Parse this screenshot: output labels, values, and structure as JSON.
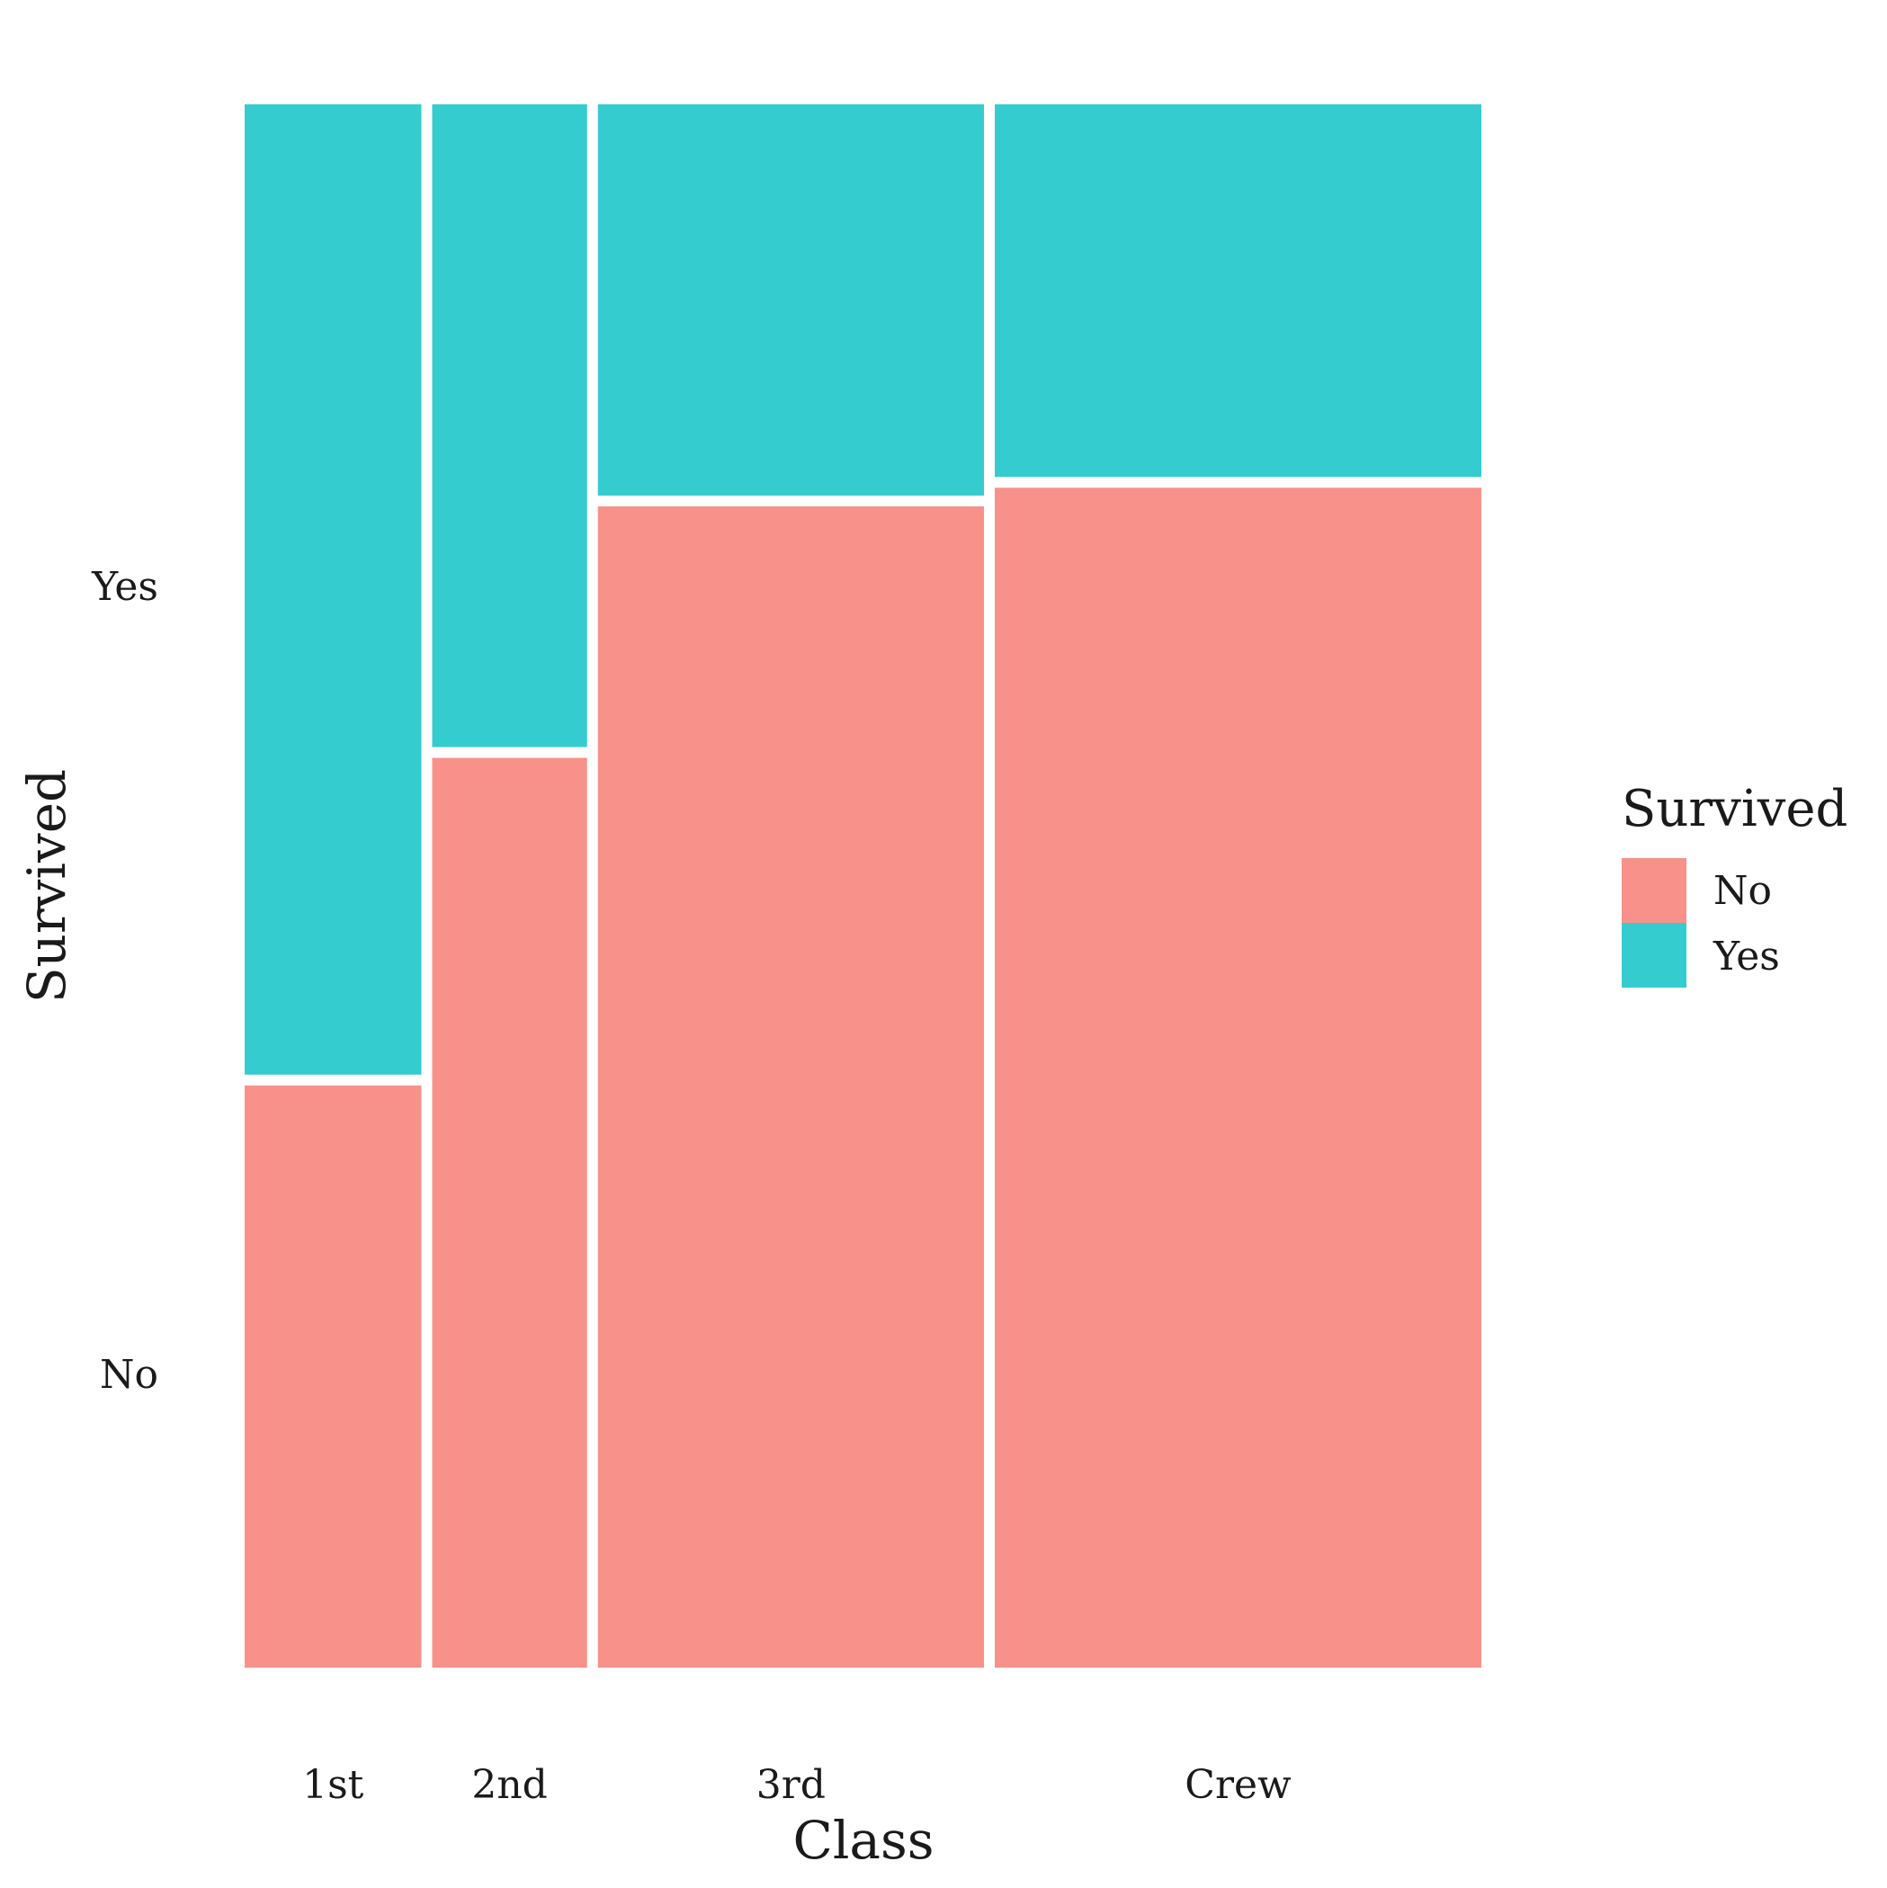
{
  "chart_data": {
    "type": "mosaic",
    "title": "",
    "xlabel": "Class",
    "ylabel": "Survived",
    "categories": [
      "1st",
      "2nd",
      "3rd",
      "Crew"
    ],
    "category_widths": [
      0.146,
      0.128,
      0.319,
      0.402
    ],
    "series": [
      {
        "name": "No",
        "proportions": [
          0.375,
          0.586,
          0.748,
          0.76
        ]
      },
      {
        "name": "Yes",
        "proportions": [
          0.625,
          0.414,
          0.252,
          0.24
        ]
      }
    ],
    "y_tick_labels": [
      "Yes",
      "No"
    ],
    "colors": {
      "No": "#F8918A",
      "Yes": "#35CCD0"
    },
    "legend": {
      "title": "Survived",
      "position": "right",
      "items": [
        "No",
        "Yes"
      ]
    },
    "grid": false
  }
}
